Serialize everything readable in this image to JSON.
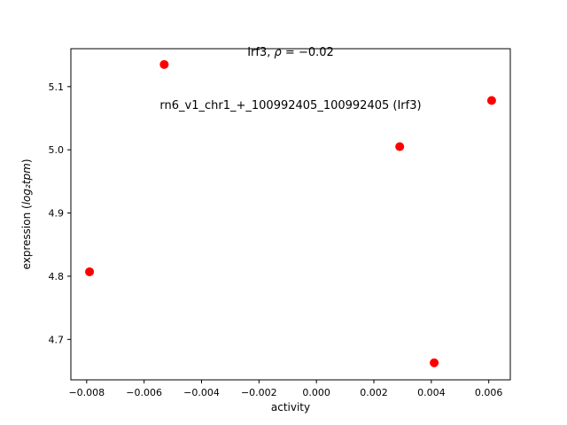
{
  "chart_data": {
    "type": "scatter",
    "title1_prefix": "Irf3, ",
    "title1_rho": "ρ",
    "title1_suffix": " = −0.02",
    "title_line2": "rn6_v1_chr1_+_100992405_100992405 (Irf3)",
    "xlabel": "activity",
    "ylabel_prefix": "expression (",
    "ylabel_math": "log₂tpm",
    "ylabel_suffix": ")",
    "marker_color": "#ff0000",
    "axis_color": "#000000",
    "xlim": [
      -0.00855,
      0.00675
    ],
    "ylim": [
      4.636,
      5.16
    ],
    "x_tick_values": [
      -0.008,
      -0.006,
      -0.004,
      -0.002,
      0.0,
      0.002,
      0.004,
      0.006
    ],
    "x_tick_labels": [
      "−0.008",
      "−0.006",
      "−0.004",
      "−0.002",
      "0.000",
      "0.002",
      "0.004",
      "0.006"
    ],
    "y_tick_values": [
      4.7,
      4.8,
      4.9,
      5.0,
      5.1
    ],
    "y_tick_labels": [
      "4.7",
      "4.8",
      "4.9",
      "5.0",
      "5.1"
    ],
    "points": [
      {
        "x": -0.0079,
        "y": 4.807
      },
      {
        "x": -0.0053,
        "y": 5.135
      },
      {
        "x": 0.0029,
        "y": 5.005
      },
      {
        "x": 0.0041,
        "y": 4.663
      },
      {
        "x": 0.0061,
        "y": 5.078
      }
    ]
  }
}
